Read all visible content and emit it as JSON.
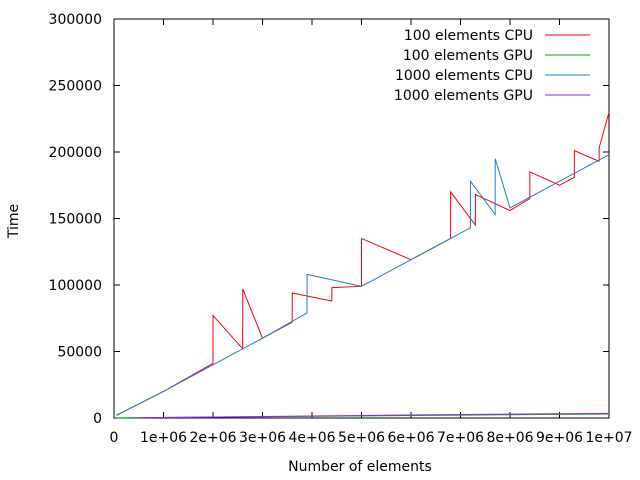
{
  "chart_data": {
    "type": "line",
    "title": "",
    "xlabel": "Number of elements",
    "ylabel": "Time",
    "xlim": [
      0,
      10000000
    ],
    "ylim": [
      0,
      300000
    ],
    "x_ticks": [
      0,
      1000000,
      2000000,
      3000000,
      4000000,
      5000000,
      6000000,
      7000000,
      8000000,
      9000000,
      10000000
    ],
    "x_tick_labels": [
      "0",
      "1e+06",
      "2e+06",
      "3e+06",
      "4e+06",
      "5e+06",
      "6e+06",
      "7e+06",
      "8e+06",
      "9e+06",
      "1e+07"
    ],
    "y_ticks": [
      0,
      50000,
      100000,
      150000,
      200000,
      250000,
      300000
    ],
    "y_tick_labels": [
      "0",
      "50000",
      "100000",
      "150000",
      "200000",
      "250000",
      "300000"
    ],
    "grid": false,
    "legend_position": "top-right",
    "series": [
      {
        "name": "100 elements CPU",
        "color": "#ff0000",
        "x": [
          50000,
          1000000,
          1900000,
          2000000,
          2001000,
          2600000,
          2601000,
          3000000,
          3600000,
          3601000,
          4400000,
          4401000,
          5000000,
          5001000,
          6000000,
          6800000,
          6801000,
          7300000,
          7301000,
          8000000,
          8400000,
          8401000,
          9000000,
          9300000,
          9301000,
          9800000,
          9801000,
          10000000
        ],
        "y": [
          2000,
          20000,
          39000,
          41000,
          77000,
          52000,
          97000,
          60000,
          72000,
          94000,
          88000,
          98000,
          99000,
          135000,
          119000,
          135000,
          170000,
          145000,
          168000,
          156000,
          165000,
          185000,
          175000,
          181000,
          201000,
          193000,
          203000,
          230000
        ]
      },
      {
        "name": "100 elements GPU",
        "color": "#00aa00",
        "x": [
          50000,
          10000000
        ],
        "y": [
          100,
          3000
        ]
      },
      {
        "name": "1000 elements CPU",
        "color": "#1a7fd6",
        "x": [
          50000,
          1000000,
          2000000,
          3000000,
          3900000,
          3901000,
          5000000,
          6000000,
          7200000,
          7201000,
          7700000,
          7701000,
          8000000,
          9000000,
          10000000
        ],
        "y": [
          2000,
          20000,
          40000,
          60000,
          79000,
          108000,
          99000,
          119000,
          143000,
          178000,
          153000,
          195000,
          158000,
          178000,
          198000
        ]
      },
      {
        "name": "1000 elements GPU",
        "color": "#a020f0",
        "x": [
          500000,
          1500000,
          3000000,
          5000000,
          7000000,
          9000000,
          10000000
        ],
        "y": [
          300,
          600,
          1100,
          1900,
          2600,
          3200,
          3500
        ]
      }
    ]
  }
}
